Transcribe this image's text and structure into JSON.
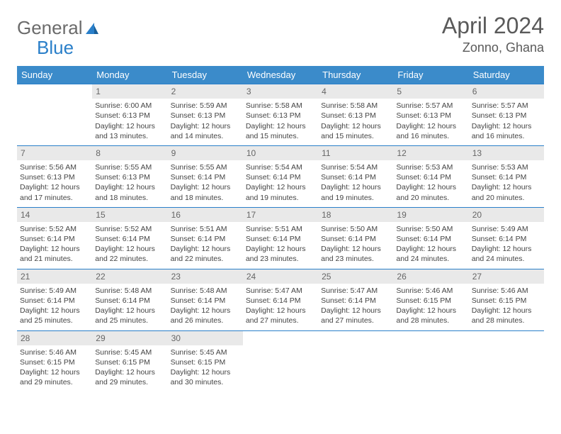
{
  "logo": {
    "word1": "General",
    "word2": "Blue"
  },
  "title": "April 2024",
  "location": "Zonno, Ghana",
  "styling": {
    "header_bg": "#3b8bca",
    "header_text": "#ffffff",
    "border_color": "#2a7fc9",
    "daynum_bg": "#e9e9e9",
    "body_text": "#444",
    "title_color": "#5a5a5a",
    "logo_gray": "#6b6b6b",
    "logo_blue": "#2a7fc9",
    "page_bg": "#ffffff",
    "title_fontsize": 32,
    "location_fontsize": 18,
    "header_fontsize": 13,
    "cell_fontsize": 10.5
  },
  "day_headers": [
    "Sunday",
    "Monday",
    "Tuesday",
    "Wednesday",
    "Thursday",
    "Friday",
    "Saturday"
  ],
  "weeks": [
    [
      {
        "n": "",
        "sr": "",
        "ss": "",
        "dl1": "",
        "dl2": "",
        "empty": true
      },
      {
        "n": "1",
        "sr": "Sunrise: 6:00 AM",
        "ss": "Sunset: 6:13 PM",
        "dl1": "Daylight: 12 hours",
        "dl2": "and 13 minutes."
      },
      {
        "n": "2",
        "sr": "Sunrise: 5:59 AM",
        "ss": "Sunset: 6:13 PM",
        "dl1": "Daylight: 12 hours",
        "dl2": "and 14 minutes."
      },
      {
        "n": "3",
        "sr": "Sunrise: 5:58 AM",
        "ss": "Sunset: 6:13 PM",
        "dl1": "Daylight: 12 hours",
        "dl2": "and 15 minutes."
      },
      {
        "n": "4",
        "sr": "Sunrise: 5:58 AM",
        "ss": "Sunset: 6:13 PM",
        "dl1": "Daylight: 12 hours",
        "dl2": "and 15 minutes."
      },
      {
        "n": "5",
        "sr": "Sunrise: 5:57 AM",
        "ss": "Sunset: 6:13 PM",
        "dl1": "Daylight: 12 hours",
        "dl2": "and 16 minutes."
      },
      {
        "n": "6",
        "sr": "Sunrise: 5:57 AM",
        "ss": "Sunset: 6:13 PM",
        "dl1": "Daylight: 12 hours",
        "dl2": "and 16 minutes."
      }
    ],
    [
      {
        "n": "7",
        "sr": "Sunrise: 5:56 AM",
        "ss": "Sunset: 6:13 PM",
        "dl1": "Daylight: 12 hours",
        "dl2": "and 17 minutes."
      },
      {
        "n": "8",
        "sr": "Sunrise: 5:55 AM",
        "ss": "Sunset: 6:13 PM",
        "dl1": "Daylight: 12 hours",
        "dl2": "and 18 minutes."
      },
      {
        "n": "9",
        "sr": "Sunrise: 5:55 AM",
        "ss": "Sunset: 6:14 PM",
        "dl1": "Daylight: 12 hours",
        "dl2": "and 18 minutes."
      },
      {
        "n": "10",
        "sr": "Sunrise: 5:54 AM",
        "ss": "Sunset: 6:14 PM",
        "dl1": "Daylight: 12 hours",
        "dl2": "and 19 minutes."
      },
      {
        "n": "11",
        "sr": "Sunrise: 5:54 AM",
        "ss": "Sunset: 6:14 PM",
        "dl1": "Daylight: 12 hours",
        "dl2": "and 19 minutes."
      },
      {
        "n": "12",
        "sr": "Sunrise: 5:53 AM",
        "ss": "Sunset: 6:14 PM",
        "dl1": "Daylight: 12 hours",
        "dl2": "and 20 minutes."
      },
      {
        "n": "13",
        "sr": "Sunrise: 5:53 AM",
        "ss": "Sunset: 6:14 PM",
        "dl1": "Daylight: 12 hours",
        "dl2": "and 20 minutes."
      }
    ],
    [
      {
        "n": "14",
        "sr": "Sunrise: 5:52 AM",
        "ss": "Sunset: 6:14 PM",
        "dl1": "Daylight: 12 hours",
        "dl2": "and 21 minutes."
      },
      {
        "n": "15",
        "sr": "Sunrise: 5:52 AM",
        "ss": "Sunset: 6:14 PM",
        "dl1": "Daylight: 12 hours",
        "dl2": "and 22 minutes."
      },
      {
        "n": "16",
        "sr": "Sunrise: 5:51 AM",
        "ss": "Sunset: 6:14 PM",
        "dl1": "Daylight: 12 hours",
        "dl2": "and 22 minutes."
      },
      {
        "n": "17",
        "sr": "Sunrise: 5:51 AM",
        "ss": "Sunset: 6:14 PM",
        "dl1": "Daylight: 12 hours",
        "dl2": "and 23 minutes."
      },
      {
        "n": "18",
        "sr": "Sunrise: 5:50 AM",
        "ss": "Sunset: 6:14 PM",
        "dl1": "Daylight: 12 hours",
        "dl2": "and 23 minutes."
      },
      {
        "n": "19",
        "sr": "Sunrise: 5:50 AM",
        "ss": "Sunset: 6:14 PM",
        "dl1": "Daylight: 12 hours",
        "dl2": "and 24 minutes."
      },
      {
        "n": "20",
        "sr": "Sunrise: 5:49 AM",
        "ss": "Sunset: 6:14 PM",
        "dl1": "Daylight: 12 hours",
        "dl2": "and 24 minutes."
      }
    ],
    [
      {
        "n": "21",
        "sr": "Sunrise: 5:49 AM",
        "ss": "Sunset: 6:14 PM",
        "dl1": "Daylight: 12 hours",
        "dl2": "and 25 minutes."
      },
      {
        "n": "22",
        "sr": "Sunrise: 5:48 AM",
        "ss": "Sunset: 6:14 PM",
        "dl1": "Daylight: 12 hours",
        "dl2": "and 25 minutes."
      },
      {
        "n": "23",
        "sr": "Sunrise: 5:48 AM",
        "ss": "Sunset: 6:14 PM",
        "dl1": "Daylight: 12 hours",
        "dl2": "and 26 minutes."
      },
      {
        "n": "24",
        "sr": "Sunrise: 5:47 AM",
        "ss": "Sunset: 6:14 PM",
        "dl1": "Daylight: 12 hours",
        "dl2": "and 27 minutes."
      },
      {
        "n": "25",
        "sr": "Sunrise: 5:47 AM",
        "ss": "Sunset: 6:14 PM",
        "dl1": "Daylight: 12 hours",
        "dl2": "and 27 minutes."
      },
      {
        "n": "26",
        "sr": "Sunrise: 5:46 AM",
        "ss": "Sunset: 6:15 PM",
        "dl1": "Daylight: 12 hours",
        "dl2": "and 28 minutes."
      },
      {
        "n": "27",
        "sr": "Sunrise: 5:46 AM",
        "ss": "Sunset: 6:15 PM",
        "dl1": "Daylight: 12 hours",
        "dl2": "and 28 minutes."
      }
    ],
    [
      {
        "n": "28",
        "sr": "Sunrise: 5:46 AM",
        "ss": "Sunset: 6:15 PM",
        "dl1": "Daylight: 12 hours",
        "dl2": "and 29 minutes."
      },
      {
        "n": "29",
        "sr": "Sunrise: 5:45 AM",
        "ss": "Sunset: 6:15 PM",
        "dl1": "Daylight: 12 hours",
        "dl2": "and 29 minutes."
      },
      {
        "n": "30",
        "sr": "Sunrise: 5:45 AM",
        "ss": "Sunset: 6:15 PM",
        "dl1": "Daylight: 12 hours",
        "dl2": "and 30 minutes."
      },
      {
        "n": "",
        "sr": "",
        "ss": "",
        "dl1": "",
        "dl2": "",
        "empty": true
      },
      {
        "n": "",
        "sr": "",
        "ss": "",
        "dl1": "",
        "dl2": "",
        "empty": true
      },
      {
        "n": "",
        "sr": "",
        "ss": "",
        "dl1": "",
        "dl2": "",
        "empty": true
      },
      {
        "n": "",
        "sr": "",
        "ss": "",
        "dl1": "",
        "dl2": "",
        "empty": true
      }
    ]
  ]
}
